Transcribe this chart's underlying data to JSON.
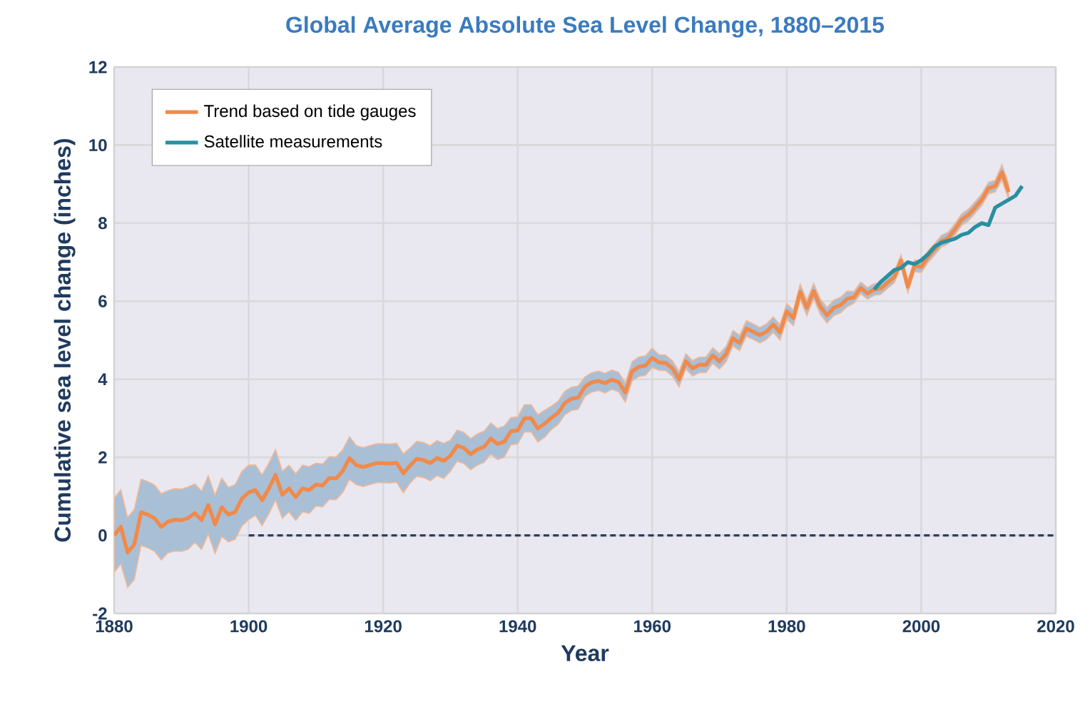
{
  "chart_data": {
    "type": "line",
    "title": "Global Average Absolute Sea Level Change, 1880–2015",
    "xlabel": "Year",
    "ylabel": "Cumulative sea level change (inches)",
    "xlim": [
      1880,
      2020
    ],
    "xticks": [
      1880,
      1900,
      1920,
      1940,
      1960,
      1980,
      2000,
      2020
    ],
    "ylim": [
      -2,
      12
    ],
    "yticks": [
      -2,
      0,
      2,
      4,
      6,
      8,
      10,
      12
    ],
    "grid": true,
    "legend": "top left",
    "series": [
      {
        "name": "Trend based on tide gauges",
        "color": "#f08a4b",
        "x": [
          1880,
          1881,
          1882,
          1883,
          1884,
          1885,
          1886,
          1887,
          1888,
          1889,
          1890,
          1891,
          1892,
          1893,
          1894,
          1895,
          1896,
          1897,
          1898,
          1899,
          1900,
          1901,
          1902,
          1903,
          1904,
          1905,
          1906,
          1907,
          1908,
          1909,
          1910,
          1911,
          1912,
          1913,
          1914,
          1915,
          1916,
          1917,
          1918,
          1919,
          1920,
          1921,
          1922,
          1923,
          1924,
          1925,
          1926,
          1927,
          1928,
          1929,
          1930,
          1931,
          1932,
          1933,
          1934,
          1935,
          1936,
          1937,
          1938,
          1939,
          1940,
          1941,
          1942,
          1943,
          1944,
          1945,
          1946,
          1947,
          1948,
          1949,
          1950,
          1951,
          1952,
          1953,
          1954,
          1955,
          1956,
          1957,
          1958,
          1959,
          1960,
          1961,
          1962,
          1963,
          1964,
          1965,
          1966,
          1967,
          1968,
          1969,
          1970,
          1971,
          1972,
          1973,
          1974,
          1975,
          1976,
          1977,
          1978,
          1979,
          1980,
          1981,
          1982,
          1983,
          1984,
          1985,
          1986,
          1987,
          1988,
          1989,
          1990,
          1991,
          1992,
          1993,
          1994,
          1995,
          1996,
          1997,
          1998,
          1999,
          2000,
          2001,
          2002,
          2003,
          2004,
          2005,
          2006,
          2007,
          2008,
          2009,
          2010,
          2011,
          2012,
          2013
        ],
        "values": [
          0.0,
          0.22,
          -0.44,
          -0.23,
          0.59,
          0.53,
          0.44,
          0.22,
          0.35,
          0.4,
          0.39,
          0.44,
          0.57,
          0.39,
          0.78,
          0.28,
          0.72,
          0.53,
          0.6,
          0.94,
          1.1,
          1.16,
          0.9,
          1.2,
          1.55,
          1.04,
          1.2,
          0.98,
          1.2,
          1.16,
          1.3,
          1.28,
          1.47,
          1.46,
          1.65,
          1.98,
          1.8,
          1.75,
          1.8,
          1.85,
          1.85,
          1.84,
          1.86,
          1.59,
          1.79,
          1.96,
          1.93,
          1.85,
          1.98,
          1.91,
          2.04,
          2.3,
          2.24,
          2.08,
          2.2,
          2.27,
          2.48,
          2.34,
          2.4,
          2.67,
          2.69,
          3.0,
          3.0,
          2.74,
          2.86,
          3.01,
          3.14,
          3.39,
          3.5,
          3.53,
          3.81,
          3.92,
          3.96,
          3.9,
          3.99,
          3.93,
          3.66,
          4.2,
          4.32,
          4.35,
          4.55,
          4.43,
          4.42,
          4.28,
          4.0,
          4.46,
          4.28,
          4.37,
          4.37,
          4.61,
          4.46,
          4.65,
          5.05,
          4.93,
          5.3,
          5.22,
          5.13,
          5.22,
          5.4,
          5.2,
          5.74,
          5.57,
          6.24,
          5.83,
          6.26,
          5.86,
          5.64,
          5.83,
          5.9,
          6.06,
          6.1,
          6.34,
          6.2,
          6.3,
          6.33,
          6.48,
          6.62,
          7.04,
          6.37,
          6.91,
          6.88,
          7.14,
          7.33,
          7.54,
          7.62,
          7.84,
          8.09,
          8.21,
          8.4,
          8.6,
          8.9,
          8.95,
          9.3,
          8.8
        ],
        "lower": [
          -0.95,
          -0.73,
          -1.34,
          -1.13,
          -0.26,
          -0.32,
          -0.41,
          -0.63,
          -0.45,
          -0.4,
          -0.41,
          -0.36,
          -0.18,
          -0.36,
          0.03,
          -0.47,
          -0.03,
          -0.17,
          -0.1,
          0.24,
          0.4,
          0.51,
          0.25,
          0.55,
          0.9,
          0.44,
          0.6,
          0.38,
          0.6,
          0.56,
          0.75,
          0.73,
          0.92,
          0.91,
          1.1,
          1.43,
          1.3,
          1.25,
          1.3,
          1.35,
          1.35,
          1.34,
          1.36,
          1.09,
          1.34,
          1.51,
          1.48,
          1.4,
          1.53,
          1.46,
          1.64,
          1.9,
          1.84,
          1.68,
          1.8,
          1.87,
          2.08,
          1.94,
          2.0,
          2.32,
          2.34,
          2.65,
          2.65,
          2.39,
          2.51,
          2.71,
          2.84,
          3.09,
          3.2,
          3.23,
          3.56,
          3.67,
          3.71,
          3.65,
          3.74,
          3.68,
          3.41,
          3.95,
          4.07,
          4.1,
          4.3,
          4.23,
          4.22,
          4.08,
          3.8,
          4.26,
          4.08,
          4.17,
          4.17,
          4.41,
          4.26,
          4.45,
          4.85,
          4.73,
          5.1,
          5.02,
          4.93,
          5.02,
          5.2,
          5.0,
          5.54,
          5.37,
          6.04,
          5.63,
          6.06,
          5.66,
          5.44,
          5.63,
          5.7,
          5.86,
          5.95,
          6.19,
          6.05,
          6.15,
          6.18,
          6.33,
          6.47,
          6.89,
          6.22,
          6.76,
          6.73,
          6.99,
          7.18,
          7.39,
          7.47,
          7.69,
          7.94,
          8.06,
          8.25,
          8.45,
          8.75,
          8.8,
          9.1,
          8.6
        ],
        "upper": [
          0.95,
          1.17,
          0.46,
          0.67,
          1.44,
          1.38,
          1.29,
          1.07,
          1.15,
          1.2,
          1.19,
          1.24,
          1.32,
          1.14,
          1.53,
          1.03,
          1.47,
          1.23,
          1.3,
          1.64,
          1.8,
          1.81,
          1.55,
          1.85,
          2.2,
          1.64,
          1.8,
          1.58,
          1.8,
          1.76,
          1.85,
          1.83,
          2.02,
          2.01,
          2.2,
          2.53,
          2.3,
          2.25,
          2.3,
          2.35,
          2.35,
          2.34,
          2.36,
          2.09,
          2.24,
          2.41,
          2.38,
          2.3,
          2.43,
          2.36,
          2.44,
          2.7,
          2.64,
          2.48,
          2.6,
          2.67,
          2.88,
          2.74,
          2.8,
          3.02,
          3.04,
          3.35,
          3.35,
          3.09,
          3.21,
          3.31,
          3.44,
          3.69,
          3.8,
          3.83,
          4.06,
          4.17,
          4.21,
          4.15,
          4.24,
          4.18,
          3.91,
          4.45,
          4.57,
          4.6,
          4.8,
          4.63,
          4.62,
          4.48,
          4.2,
          4.66,
          4.48,
          4.57,
          4.57,
          4.81,
          4.66,
          4.85,
          5.25,
          5.13,
          5.5,
          5.42,
          5.33,
          5.42,
          5.6,
          5.4,
          5.94,
          5.77,
          6.44,
          6.03,
          6.46,
          6.06,
          5.84,
          6.03,
          6.1,
          6.26,
          6.25,
          6.49,
          6.35,
          6.45,
          6.48,
          6.63,
          6.77,
          7.19,
          6.52,
          7.06,
          7.03,
          7.29,
          7.48,
          7.69,
          7.77,
          7.99,
          8.24,
          8.36,
          8.55,
          8.75,
          9.05,
          9.1,
          9.5,
          9.0
        ]
      },
      {
        "name": "Satellite measurements",
        "color": "#2a8fa0",
        "x": [
          1993,
          1994,
          1995,
          1996,
          1997,
          1998,
          1999,
          2000,
          2001,
          2002,
          2003,
          2004,
          2005,
          2006,
          2007,
          2008,
          2009,
          2010,
          2011,
          2012,
          2013,
          2014,
          2015
        ],
        "values": [
          6.3,
          6.5,
          6.65,
          6.8,
          6.85,
          7.0,
          6.95,
          7.05,
          7.2,
          7.4,
          7.5,
          7.55,
          7.6,
          7.7,
          7.75,
          7.9,
          8.0,
          7.95,
          8.4,
          8.5,
          8.6,
          8.7,
          8.95
        ]
      },
      {
        "color": "#2b3f63",
        "line_style": "dashed",
        "x": [
          1900,
          2020
        ],
        "values": [
          0,
          0
        ]
      }
    ]
  }
}
